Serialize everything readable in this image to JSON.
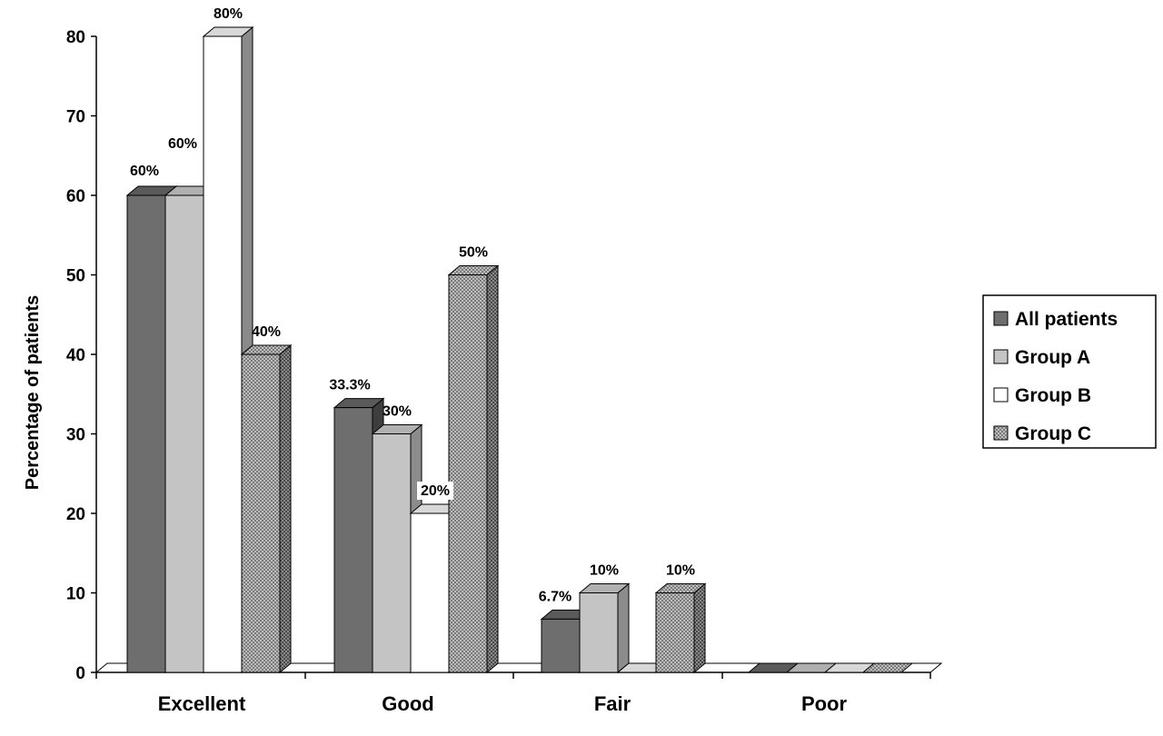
{
  "chart_data": {
    "type": "bar",
    "categories": [
      "Excellent",
      "Good",
      "Fair",
      "Poor"
    ],
    "series": [
      {
        "name": "All patients",
        "values": [
          60,
          33.3,
          6.7,
          0
        ],
        "labels": [
          "60%",
          "33.3%",
          "6.7%",
          ""
        ],
        "color": "#6e6e6e"
      },
      {
        "name": "Group A",
        "values": [
          60,
          30,
          10,
          0
        ],
        "labels": [
          "60%",
          "30%",
          "10%",
          ""
        ],
        "color": "#c4c4c4"
      },
      {
        "name": "Group B",
        "values": [
          80,
          20,
          0,
          0
        ],
        "labels": [
          "80%",
          "20%",
          "",
          ""
        ],
        "color": "#ffffff"
      },
      {
        "name": "Group C",
        "values": [
          40,
          50,
          10,
          0
        ],
        "labels": [
          "40%",
          "50%",
          "10%",
          ""
        ],
        "color": "#a8a8a8",
        "pattern": "dotted"
      }
    ],
    "title": "",
    "xlabel": "",
    "ylabel": "Percentage of patients",
    "ylim": [
      0,
      80
    ],
    "yticks": [
      0,
      10,
      20,
      30,
      40,
      50,
      60,
      70,
      80
    ],
    "grid": false,
    "three_d": true,
    "legend_position": "right"
  }
}
